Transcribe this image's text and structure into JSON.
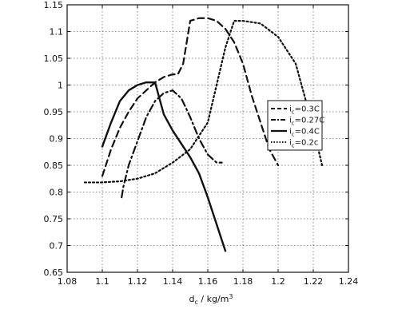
{
  "chart_data": {
    "type": "line",
    "title": "",
    "xlabel": "d_c / kg/m^3",
    "ylabel": "",
    "xlim": [
      1.08,
      1.24
    ],
    "ylim": [
      0.65,
      1.15
    ],
    "xticks": [
      1.08,
      1.1,
      1.12,
      1.14,
      1.16,
      1.18,
      1.2,
      1.22,
      1.24
    ],
    "yticks": [
      0.65,
      0.7,
      0.75,
      0.8,
      0.85,
      0.9,
      0.95,
      1.0,
      1.05,
      1.1,
      1.15
    ],
    "xtick_labels": [
      "1.08",
      "1.1",
      "1.12",
      "1.14",
      "1.16",
      "1.18",
      "1.2",
      "1.22",
      "1.24"
    ],
    "ytick_labels": [
      "0.65",
      "0.7",
      "0.75",
      "0.8",
      "0.85",
      "0.9",
      "0.95",
      "1",
      "1.05",
      "1.1",
      "1.15"
    ],
    "grid": true,
    "legend_position": "right",
    "series": [
      {
        "name": "i_c=0.3C",
        "style": "dashed",
        "color": "#111111",
        "x": [
          1.1,
          1.105,
          1.11,
          1.115,
          1.12,
          1.125,
          1.13,
          1.135,
          1.14,
          1.143,
          1.146,
          1.148,
          1.15,
          1.155,
          1.16,
          1.165,
          1.17,
          1.175,
          1.18,
          1.185,
          1.19,
          1.195,
          1.2
        ],
        "y": [
          0.83,
          0.88,
          0.92,
          0.95,
          0.975,
          0.99,
          1.005,
          1.015,
          1.02,
          1.02,
          1.04,
          1.08,
          1.12,
          1.125,
          1.125,
          1.12,
          1.105,
          1.08,
          1.04,
          0.98,
          0.93,
          0.88,
          0.85
        ]
      },
      {
        "name": "i_c=0.27C",
        "style": "dashdot",
        "color": "#111111",
        "x": [
          1.111,
          1.112,
          1.115,
          1.12,
          1.125,
          1.13,
          1.135,
          1.14,
          1.145,
          1.15,
          1.155,
          1.16,
          1.165,
          1.168
        ],
        "y": [
          0.79,
          0.81,
          0.85,
          0.895,
          0.94,
          0.97,
          0.985,
          0.99,
          0.975,
          0.94,
          0.9,
          0.87,
          0.855,
          0.855
        ]
      },
      {
        "name": "i_c=0.4C",
        "style": "solid",
        "color": "#111111",
        "x": [
          1.1,
          1.105,
          1.11,
          1.115,
          1.12,
          1.125,
          1.13,
          1.135,
          1.14,
          1.145,
          1.15,
          1.155,
          1.16,
          1.165,
          1.17
        ],
        "y": [
          0.885,
          0.93,
          0.97,
          0.99,
          1.0,
          1.005,
          1.005,
          0.945,
          0.915,
          0.89,
          0.865,
          0.835,
          0.79,
          0.74,
          0.69
        ]
      },
      {
        "name": "i_c=0.2c",
        "style": "dotted",
        "color": "#111111",
        "x": [
          1.09,
          1.1,
          1.11,
          1.12,
          1.13,
          1.14,
          1.15,
          1.16,
          1.165,
          1.17,
          1.175,
          1.18,
          1.19,
          1.2,
          1.21,
          1.215,
          1.22,
          1.225
        ],
        "y": [
          0.818,
          0.818,
          0.82,
          0.825,
          0.835,
          0.855,
          0.88,
          0.93,
          1.0,
          1.07,
          1.12,
          1.12,
          1.115,
          1.09,
          1.04,
          0.98,
          0.92,
          0.85
        ]
      }
    ]
  }
}
